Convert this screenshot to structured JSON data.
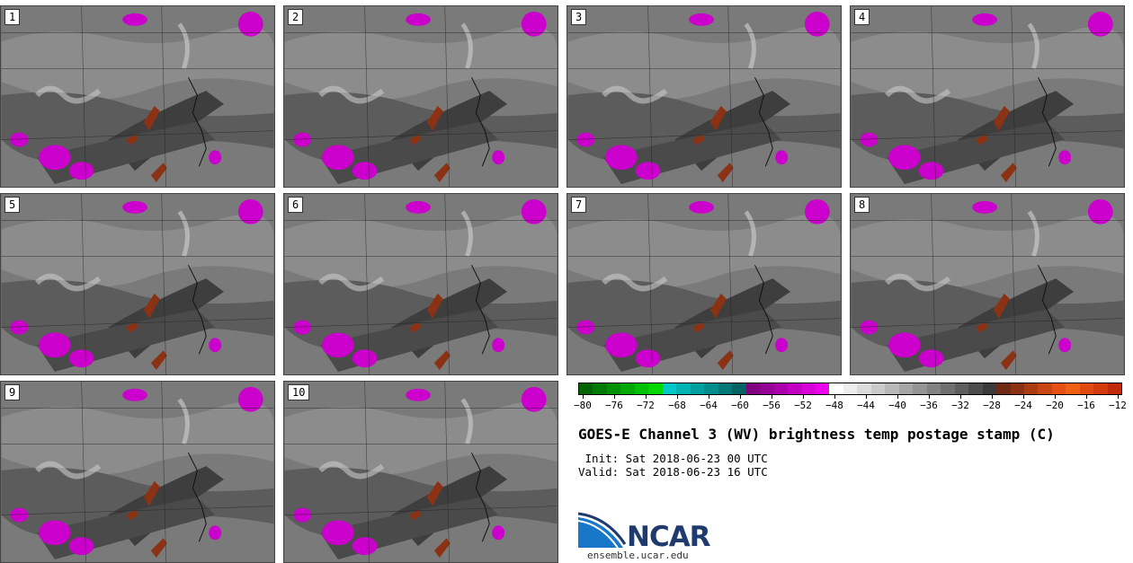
{
  "panels": [
    {
      "label": "1"
    },
    {
      "label": "2"
    },
    {
      "label": "3"
    },
    {
      "label": "4"
    },
    {
      "label": "5"
    },
    {
      "label": "6"
    },
    {
      "label": "7"
    },
    {
      "label": "8"
    },
    {
      "label": "9"
    },
    {
      "label": "10"
    }
  ],
  "colorbar": {
    "ticks": [
      "−80",
      "−76",
      "−72",
      "−68",
      "−64",
      "−60",
      "−56",
      "−52",
      "−48",
      "−44",
      "−40",
      "−36",
      "−32",
      "−28",
      "−24",
      "−20",
      "−16",
      "−12"
    ],
    "colors": [
      "#006400",
      "#007a00",
      "#009000",
      "#00a800",
      "#00c000",
      "#00d800",
      "#00c8c8",
      "#00b4b4",
      "#00a0a0",
      "#008c8c",
      "#007878",
      "#006464",
      "#800080",
      "#960096",
      "#ac00ac",
      "#c200c2",
      "#d800d8",
      "#ee00ee",
      "#ffffff",
      "#eeeeee",
      "#dcdcdc",
      "#cacaca",
      "#b8b8b8",
      "#a6a6a6",
      "#949494",
      "#828282",
      "#707070",
      "#5e5e5e",
      "#4c4c4c",
      "#3a3a3a",
      "#6e2a14",
      "#8c3214",
      "#aa3c14",
      "#c84614",
      "#e65014",
      "#f06014",
      "#e04a10",
      "#d03a0c",
      "#c02a08"
    ]
  },
  "title": "GOES-E Channel 3 (WV) brightness temp postage stamp (C)",
  "init": " Init: Sat 2018-06-23 00 UTC",
  "valid": "Valid: Sat 2018-06-23 16 UTC",
  "logo": {
    "name": "NCAR",
    "site": "ensemble.ucar.edu"
  }
}
